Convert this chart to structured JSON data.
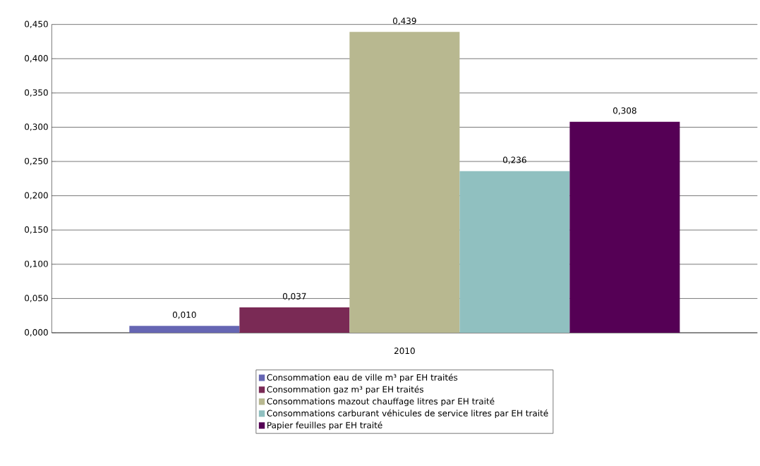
{
  "chart_data": {
    "type": "bar",
    "categories": [
      "2010"
    ],
    "series": [
      {
        "name": "Consommation eau de ville m³ par EH traités",
        "color": "#6666b3",
        "values": [
          0.01
        ],
        "value_labels": [
          "0,010"
        ]
      },
      {
        "name": "Consommation gaz m³ par EH traités",
        "color": "#7a2a55",
        "values": [
          0.037
        ],
        "value_labels": [
          "0,037"
        ]
      },
      {
        "name": "Consommations mazout chauffage litres par EH traité",
        "color": "#b8b890",
        "values": [
          0.439
        ],
        "value_labels": [
          "0,439"
        ]
      },
      {
        "name": "Consommations carburant véhicules de service litres par EH traité",
        "color": "#90c0c0",
        "values": [
          0.236
        ],
        "value_labels": [
          "0,236"
        ]
      },
      {
        "name": "Papier feuilles par EH traité",
        "color": "#550055",
        "values": [
          0.308
        ],
        "value_labels": [
          "0,308"
        ]
      }
    ],
    "ylim": [
      0,
      0.45
    ],
    "yticks": [
      {
        "value": 0,
        "label": "0,000"
      },
      {
        "value": 0.05,
        "label": "0,050"
      },
      {
        "value": 0.1,
        "label": "0,100"
      },
      {
        "value": 0.15,
        "label": "0,150"
      },
      {
        "value": 0.2,
        "label": "0,200"
      },
      {
        "value": 0.25,
        "label": "0,250"
      },
      {
        "value": 0.3,
        "label": "0,300"
      },
      {
        "value": 0.35,
        "label": "0,350"
      },
      {
        "value": 0.4,
        "label": "0,400"
      },
      {
        "value": 0.45,
        "label": "0,450"
      }
    ],
    "grid": "y",
    "legend": "bottom"
  }
}
